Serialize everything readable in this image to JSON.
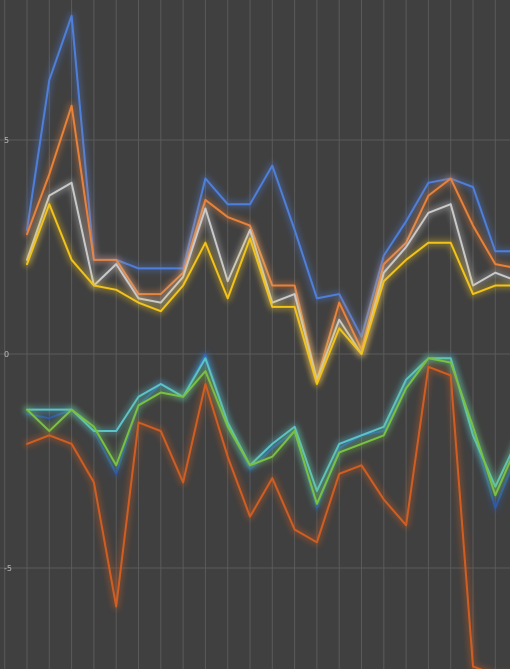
{
  "chart_data": {
    "type": "line",
    "title": "",
    "xlabel": "",
    "ylabel": "",
    "ylim": [
      -7.3,
      8.3
    ],
    "xlim": [
      0,
      22.5
    ],
    "grid": true,
    "y_ticks": [
      5,
      0,
      -5
    ],
    "y_tick_labels": [
      "5",
      "0",
      "-5"
    ],
    "x": [
      1,
      2,
      3,
      4,
      5,
      6,
      7,
      8,
      9,
      10,
      11,
      12,
      13,
      14,
      15,
      16,
      17,
      18,
      19,
      20,
      21,
      22,
      23
    ],
    "series": [
      {
        "color": "#4f7fd9",
        "values": [
          2.9,
          6.4,
          7.9,
          2.2,
          2.2,
          2.0,
          2.0,
          2.0,
          4.1,
          3.5,
          3.5,
          4.4,
          2.9,
          1.3,
          1.4,
          0.4,
          2.3,
          3.1,
          4.0,
          4.1,
          3.9,
          2.4,
          2.4
        ]
      },
      {
        "color": "#e8823a",
        "values": [
          2.8,
          4.2,
          5.8,
          2.2,
          2.2,
          1.4,
          1.4,
          1.9,
          3.6,
          3.2,
          3.0,
          1.6,
          1.6,
          -0.6,
          1.2,
          0.1,
          2.1,
          2.6,
          3.7,
          4.1,
          3.0,
          2.1,
          2.0
        ]
      },
      {
        "color": "#c9c9c9",
        "values": [
          2.2,
          3.7,
          4.0,
          1.6,
          2.1,
          1.3,
          1.2,
          1.8,
          3.4,
          1.7,
          2.9,
          1.2,
          1.4,
          -0.6,
          0.8,
          0.0,
          1.9,
          2.5,
          3.3,
          3.5,
          1.6,
          1.9,
          1.7
        ]
      },
      {
        "color": "#f2c31b",
        "values": [
          2.1,
          3.5,
          2.2,
          1.6,
          1.5,
          1.2,
          1.0,
          1.6,
          2.6,
          1.3,
          2.7,
          1.1,
          1.1,
          -0.7,
          0.6,
          0.0,
          1.7,
          2.2,
          2.6,
          2.6,
          1.4,
          1.6,
          1.6
        ]
      },
      {
        "color": "#2f5aa8",
        "values": [
          -1.4,
          -1.5,
          -1.3,
          -1.8,
          -2.8,
          -1.2,
          -0.7,
          -1.0,
          0.0,
          -1.6,
          -2.7,
          -2.2,
          -1.8,
          -3.6,
          -2.2,
          -1.9,
          -1.8,
          -0.7,
          -0.1,
          -0.1,
          -1.8,
          -3.6,
          -2.3
        ]
      },
      {
        "color": "#5bc4c9",
        "values": [
          -1.3,
          -1.3,
          -1.3,
          -1.8,
          -1.8,
          -1.0,
          -0.7,
          -1.0,
          -0.1,
          -1.6,
          -2.6,
          -2.1,
          -1.7,
          -3.2,
          -2.1,
          -1.9,
          -1.7,
          -0.6,
          -0.1,
          -0.1,
          -1.9,
          -3.1,
          -2.0
        ]
      },
      {
        "color": "#7ac142",
        "values": [
          -1.3,
          -1.8,
          -1.3,
          -1.7,
          -2.6,
          -1.2,
          -0.9,
          -1.0,
          -0.4,
          -1.7,
          -2.6,
          -2.4,
          -1.8,
          -3.5,
          -2.3,
          -2.1,
          -1.9,
          -0.8,
          -0.1,
          -0.2,
          -1.7,
          -3.3,
          -2.1
        ]
      },
      {
        "color": "#d05e22",
        "values": [
          -2.1,
          -1.9,
          -2.1,
          -3.0,
          -5.9,
          -1.6,
          -1.8,
          -3.0,
          -0.7,
          -2.4,
          -3.8,
          -2.9,
          -4.1,
          -4.4,
          -2.8,
          -2.6,
          -3.4,
          -4.0,
          -0.3,
          -0.5,
          -7.3,
          -7.5,
          -7.5
        ]
      }
    ]
  }
}
